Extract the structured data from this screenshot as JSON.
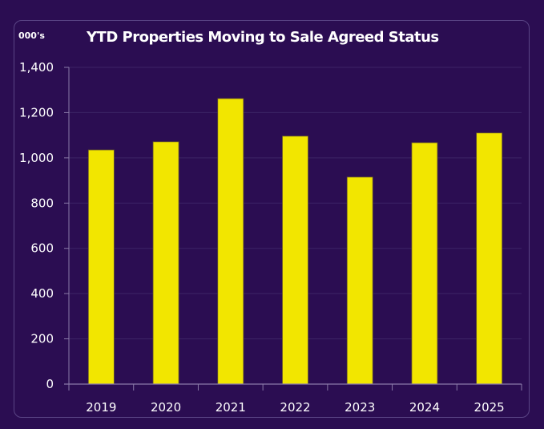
{
  "chart_data": {
    "type": "bar",
    "title": "YTD Properties Moving to Sale Agreed Status",
    "unit_label": "000's",
    "xlabel": "",
    "ylabel": "000's",
    "categories": [
      "2019",
      "2020",
      "2021",
      "2022",
      "2023",
      "2024",
      "2025"
    ],
    "values": [
      1035,
      1071,
      1262,
      1096,
      915,
      1067,
      1110
    ],
    "ylim": [
      0,
      1400
    ],
    "yticks": [
      0,
      200,
      400,
      600,
      800,
      1000,
      1200,
      1400
    ],
    "ytick_labels": [
      "0",
      "200",
      "400",
      "600",
      "800",
      "1,000",
      "1,200",
      "1,400"
    ],
    "grid": true,
    "legend": "none",
    "colors": {
      "background": "#2b0d52",
      "bar": "#f2e600",
      "bar_edge": "#6b5a2a",
      "grid": "#3d2466",
      "axis": "#8a7aa8",
      "text": "#ffffff"
    }
  }
}
